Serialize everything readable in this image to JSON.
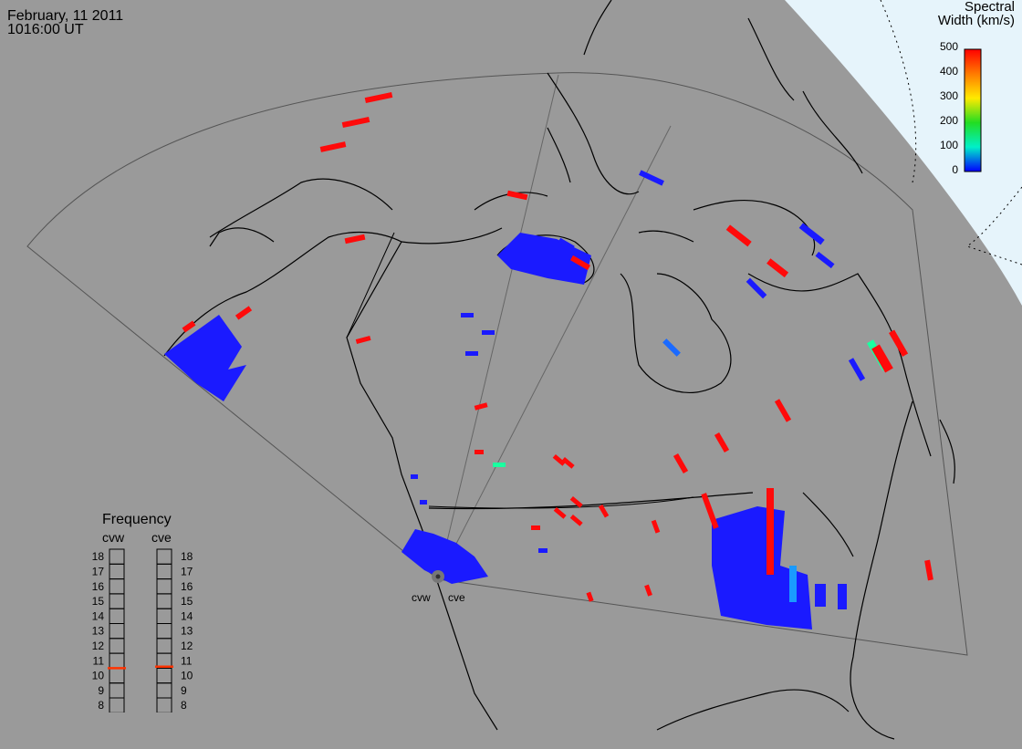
{
  "header": {
    "date": "February, 11 2011",
    "time": "1016:00 UT"
  },
  "colorbar": {
    "title_line1": "Spectral",
    "title_line2": "Width (km/s)",
    "ticks": [
      "500",
      "400",
      "300",
      "200",
      "100",
      "0"
    ],
    "colors": [
      "#ff0000",
      "#ff8800",
      "#ffff00",
      "#00ff00",
      "#00ffcc",
      "#0000ff"
    ]
  },
  "radars": {
    "west": "cvw",
    "east": "cve"
  },
  "frequency": {
    "title": "Frequency",
    "cvw_label": "cvw",
    "cve_label": "cve",
    "scale": [
      "18",
      "17",
      "16",
      "15",
      "14",
      "13",
      "12",
      "11",
      "10",
      "9",
      "8"
    ],
    "cvw_value_mhz": 10.5,
    "cve_value_mhz": 10.6,
    "marker_color": "#ff3300"
  },
  "colors": {
    "background": "#9a9a9a",
    "polar_cap": "#e6f4fb",
    "low_width": "#1a1aff",
    "high_width": "#ff0a0a"
  }
}
